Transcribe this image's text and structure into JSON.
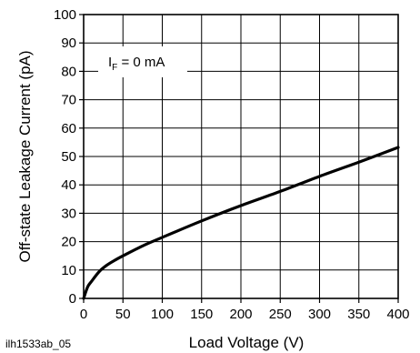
{
  "chart_data": {
    "type": "line",
    "title": "",
    "xlabel": "Load Voltage (V)",
    "ylabel": "Off-state Leakage Current (pA)",
    "xlim": [
      0,
      400
    ],
    "ylim": [
      0,
      100
    ],
    "x_ticks": [
      0,
      50,
      100,
      150,
      200,
      250,
      300,
      350,
      400
    ],
    "y_ticks": [
      0,
      10,
      20,
      30,
      40,
      50,
      60,
      70,
      80,
      90,
      100
    ],
    "grid": true,
    "annotation": {
      "main": "I",
      "subscript": "F",
      "rest": " = 0 mA"
    },
    "figure_id": "ilh1533ab_05",
    "series": [
      {
        "color": "#000000",
        "x": [
          0,
          5,
          10,
          20,
          30,
          40,
          50,
          75,
          100,
          150,
          200,
          250,
          300,
          350,
          400
        ],
        "y": [
          0,
          4,
          6,
          9.5,
          11.8,
          13.5,
          15,
          18.5,
          21.5,
          27.3,
          32.7,
          37.7,
          43,
          48,
          53.2
        ]
      }
    ]
  }
}
